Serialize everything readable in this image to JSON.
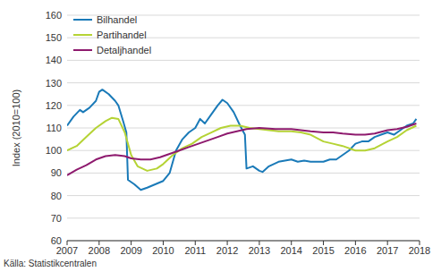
{
  "chart_data": {
    "type": "line",
    "y_label": "Index (2010=100)",
    "source": "Källa: Statistikcentralen",
    "xlim": [
      2007,
      2018
    ],
    "xticks": [
      2007,
      2008,
      2009,
      2010,
      2011,
      2012,
      2013,
      2014,
      2015,
      2016,
      2017,
      2018
    ],
    "ylim": [
      60,
      160
    ],
    "yticks": [
      60,
      70,
      80,
      90,
      100,
      110,
      120,
      130,
      140,
      150,
      160
    ],
    "grid": true,
    "legend": "top-left",
    "series": [
      {
        "name": "Bilhandel",
        "color": "#1a7ab8",
        "x": [
          2007.0,
          2007.2,
          2007.4,
          2007.5,
          2007.7,
          2007.9,
          2008.0,
          2008.1,
          2008.3,
          2008.5,
          2008.6,
          2008.75,
          2008.85,
          2008.9,
          2009.1,
          2009.3,
          2009.5,
          2009.75,
          2010.0,
          2010.2,
          2010.4,
          2010.6,
          2010.8,
          2011.0,
          2011.15,
          2011.3,
          2011.5,
          2011.7,
          2011.85,
          2012.0,
          2012.2,
          2012.4,
          2012.55,
          2012.6,
          2012.8,
          2013.0,
          2013.1,
          2013.3,
          2013.6,
          2013.8,
          2014.0,
          2014.2,
          2014.4,
          2014.6,
          2014.8,
          2015.0,
          2015.2,
          2015.4,
          2015.6,
          2015.8,
          2016.0,
          2016.2,
          2016.4,
          2016.6,
          2016.8,
          2017.0,
          2017.2,
          2017.4,
          2017.6,
          2017.8,
          2017.9
        ],
        "values": [
          111,
          115,
          118,
          117,
          119,
          122,
          126,
          127,
          125,
          122,
          120,
          113,
          108,
          87,
          85,
          82.5,
          83.5,
          85,
          86.5,
          90,
          100,
          105,
          108,
          110,
          114,
          112,
          116,
          120,
          122.5,
          121,
          117,
          111,
          107,
          92,
          93,
          91,
          90.5,
          93,
          95,
          95.5,
          96,
          95,
          95.5,
          95,
          95,
          95,
          96,
          96,
          98,
          100,
          103,
          104,
          104,
          106,
          107,
          108,
          107,
          109,
          111,
          112,
          114
        ]
      },
      {
        "name": "Partihandel",
        "color": "#b5d335",
        "x": [
          2007.0,
          2007.3,
          2007.6,
          2007.9,
          2008.2,
          2008.4,
          2008.6,
          2008.8,
          2009.0,
          2009.2,
          2009.5,
          2009.8,
          2010.0,
          2010.3,
          2010.6,
          2010.9,
          2011.2,
          2011.5,
          2011.8,
          2012.1,
          2012.4,
          2012.7,
          2013.0,
          2013.3,
          2013.6,
          2014.0,
          2014.3,
          2014.6,
          2015.0,
          2015.3,
          2015.6,
          2016.0,
          2016.3,
          2016.6,
          2017.0,
          2017.3,
          2017.6,
          2017.9
        ],
        "values": [
          100,
          102,
          106,
          110,
          113,
          114.5,
          114,
          108,
          98,
          93,
          91,
          92,
          94,
          98,
          101,
          103,
          106,
          108,
          110,
          111,
          111,
          110,
          109.5,
          109,
          108.5,
          108.5,
          108,
          107,
          104,
          103,
          102,
          100,
          100,
          101,
          104,
          106,
          109,
          111
        ]
      },
      {
        "name": "Detaljhandel",
        "color": "#8e1a6e",
        "x": [
          2007.0,
          2007.3,
          2007.6,
          2007.9,
          2008.2,
          2008.5,
          2008.8,
          2009.0,
          2009.3,
          2009.6,
          2009.9,
          2010.2,
          2010.5,
          2010.8,
          2011.1,
          2011.4,
          2011.7,
          2012.0,
          2012.3,
          2012.6,
          2013.0,
          2013.5,
          2014.0,
          2014.3,
          2014.6,
          2015.0,
          2015.3,
          2015.6,
          2016.0,
          2016.3,
          2016.6,
          2017.0,
          2017.3,
          2017.6,
          2017.9
        ],
        "values": [
          89,
          91.5,
          93.5,
          96,
          97.5,
          98,
          97.5,
          96.5,
          96,
          96,
          97,
          98.5,
          100,
          101.5,
          103,
          104.5,
          106,
          107.5,
          108.5,
          109.5,
          110,
          109.5,
          109.5,
          109,
          108.5,
          108,
          108,
          107.5,
          107,
          107,
          107.5,
          109,
          109.5,
          110.5,
          112
        ]
      }
    ]
  }
}
